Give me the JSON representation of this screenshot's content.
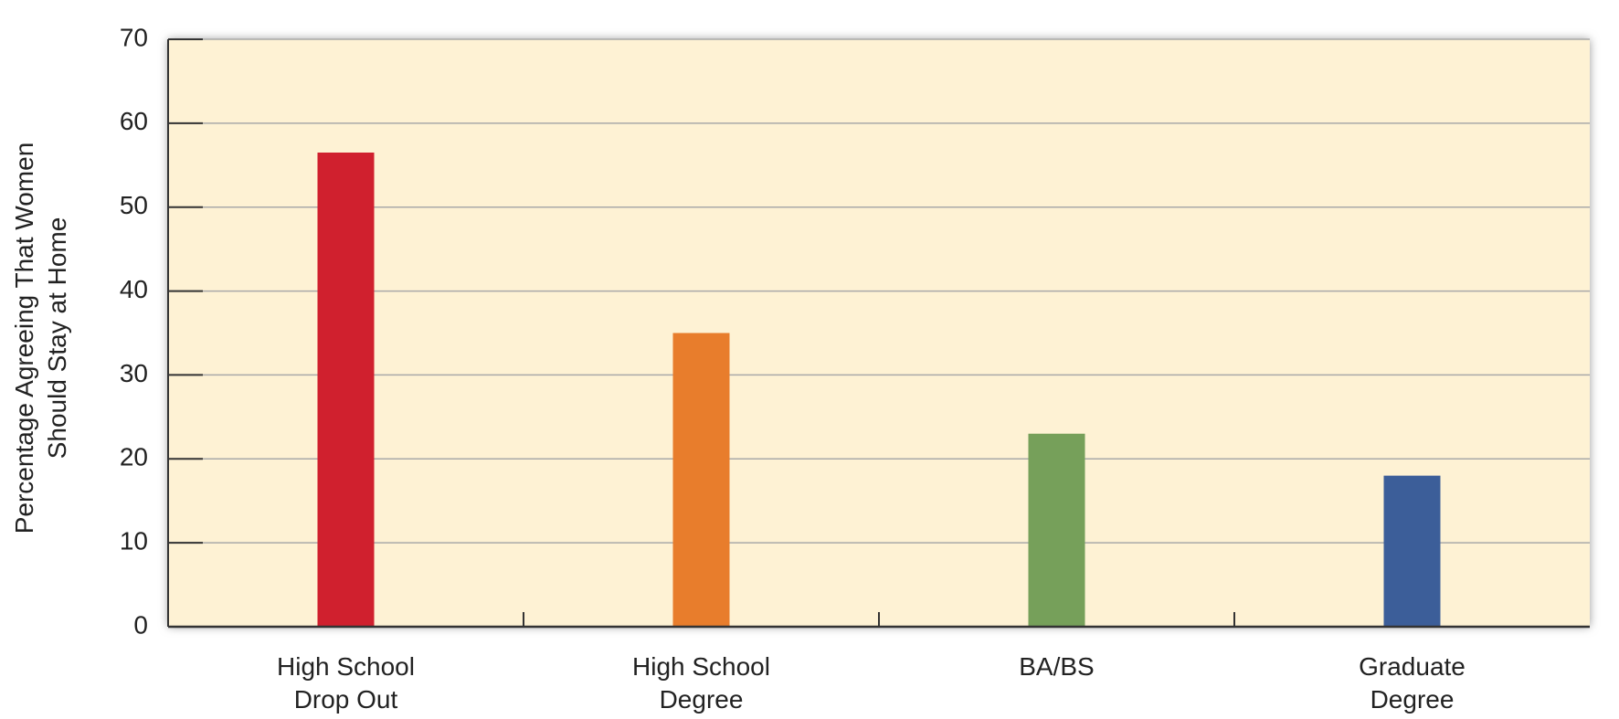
{
  "chart_data": {
    "type": "bar",
    "ylabel": "Percentage Agreeing That Women Should Stay at Home",
    "categories": [
      "High School Drop Out",
      "High School Degree",
      "BA/BS",
      "Graduate Degree"
    ],
    "values": [
      56.5,
      35,
      23,
      18
    ],
    "colors": [
      "#d0202e",
      "#e87d2c",
      "#76a05a",
      "#3c5e99"
    ],
    "ylim": [
      0,
      70
    ],
    "yticks": [
      0,
      10,
      20,
      30,
      40,
      50,
      60,
      70
    ],
    "grid": true
  }
}
